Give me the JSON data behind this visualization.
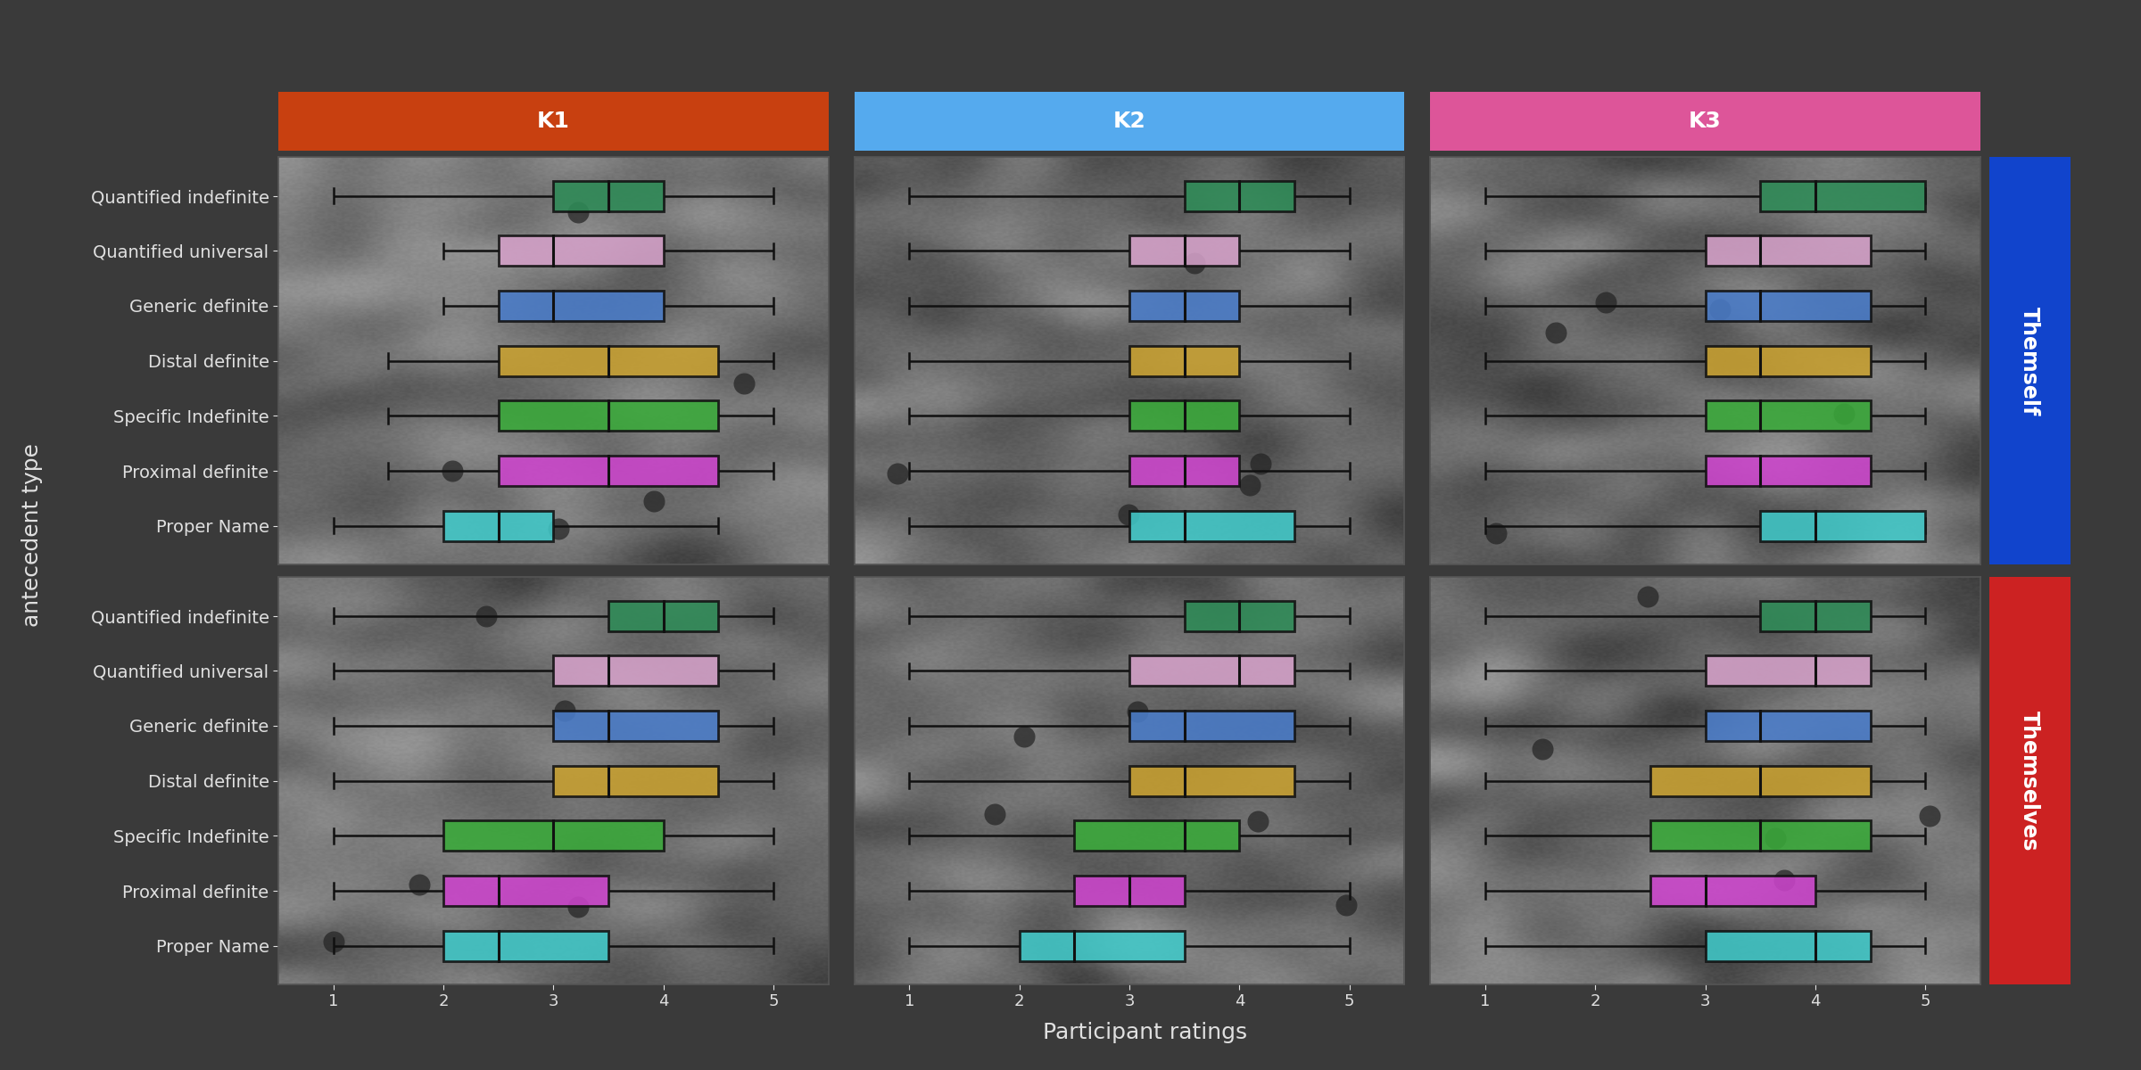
{
  "col_labels": [
    "K1",
    "K2",
    "K3"
  ],
  "col_colors": [
    "#c84010",
    "#55aaee",
    "#dd5599"
  ],
  "row_labels": [
    "Themself",
    "Themselves"
  ],
  "row_colors": [
    "#1144cc",
    "#cc2222"
  ],
  "categories": [
    "Quantified indefinite",
    "Quantified universal",
    "Generic definite",
    "Distal definite",
    "Specific Indefinite",
    "Proximal definite",
    "Proper Name"
  ],
  "box_colors": [
    "#2e8b57",
    "#d4a0c8",
    "#4a7cc9",
    "#c8a030",
    "#3aaa3a",
    "#cc44cc",
    "#40c8c8"
  ],
  "background_color": "#3a3a3a",
  "text_color": "#e0e0e0",
  "title_fontsize": 18,
  "label_fontsize": 14,
  "tick_fontsize": 13,
  "xlabel": "Participant ratings",
  "ylabel": "antecedent type",
  "xlim": [
    0.5,
    5.5
  ],
  "xticks": [
    1,
    2,
    3,
    4,
    5
  ],
  "data": {
    "Themself": {
      "K1": {
        "Quantified indefinite": [
          1.0,
          3.0,
          3.5,
          4.0,
          5.0
        ],
        "Quantified universal": [
          2.0,
          2.5,
          3.0,
          4.0,
          5.0
        ],
        "Generic definite": [
          2.0,
          2.5,
          3.0,
          4.0,
          5.0
        ],
        "Distal definite": [
          1.5,
          2.5,
          3.5,
          4.5,
          5.0
        ],
        "Specific Indefinite": [
          1.5,
          2.5,
          3.5,
          4.5,
          5.0
        ],
        "Proximal definite": [
          1.5,
          2.5,
          3.5,
          4.5,
          5.0
        ],
        "Proper Name": [
          1.0,
          2.0,
          2.5,
          3.0,
          4.5
        ]
      },
      "K2": {
        "Quantified indefinite": [
          1.0,
          3.5,
          4.0,
          4.5,
          5.0
        ],
        "Quantified universal": [
          1.0,
          3.0,
          3.5,
          4.0,
          5.0
        ],
        "Generic definite": [
          1.0,
          3.0,
          3.5,
          4.0,
          5.0
        ],
        "Distal definite": [
          1.0,
          3.0,
          3.5,
          4.0,
          5.0
        ],
        "Specific Indefinite": [
          1.0,
          3.0,
          3.5,
          4.0,
          5.0
        ],
        "Proximal definite": [
          1.0,
          3.0,
          3.5,
          4.0,
          5.0
        ],
        "Proper Name": [
          1.0,
          3.0,
          3.5,
          4.5,
          5.0
        ]
      },
      "K3": {
        "Quantified indefinite": [
          1.0,
          3.5,
          4.0,
          5.0,
          5.0
        ],
        "Quantified universal": [
          1.0,
          3.0,
          3.5,
          4.5,
          5.0
        ],
        "Generic definite": [
          1.0,
          3.0,
          3.5,
          4.5,
          5.0
        ],
        "Distal definite": [
          1.0,
          3.0,
          3.5,
          4.5,
          5.0
        ],
        "Specific Indefinite": [
          1.0,
          3.0,
          3.5,
          4.5,
          5.0
        ],
        "Proximal definite": [
          1.0,
          3.0,
          3.5,
          4.5,
          5.0
        ],
        "Proper Name": [
          1.0,
          3.5,
          4.0,
          5.0,
          5.0
        ]
      }
    },
    "Themselves": {
      "K1": {
        "Quantified indefinite": [
          1.0,
          3.5,
          4.0,
          4.5,
          5.0
        ],
        "Quantified universal": [
          1.0,
          3.0,
          3.5,
          4.5,
          5.0
        ],
        "Generic definite": [
          1.0,
          3.0,
          3.5,
          4.5,
          5.0
        ],
        "Distal definite": [
          1.0,
          3.0,
          3.5,
          4.5,
          5.0
        ],
        "Specific Indefinite": [
          1.0,
          2.0,
          3.0,
          4.0,
          5.0
        ],
        "Proximal definite": [
          1.0,
          2.0,
          2.5,
          3.5,
          5.0
        ],
        "Proper Name": [
          1.0,
          2.0,
          2.5,
          3.5,
          5.0
        ]
      },
      "K2": {
        "Quantified indefinite": [
          1.0,
          3.5,
          4.0,
          4.5,
          5.0
        ],
        "Quantified universal": [
          1.0,
          3.0,
          4.0,
          4.5,
          5.0
        ],
        "Generic definite": [
          1.0,
          3.0,
          3.5,
          4.5,
          5.0
        ],
        "Distal definite": [
          1.0,
          3.0,
          3.5,
          4.5,
          5.0
        ],
        "Specific Indefinite": [
          1.0,
          2.5,
          3.5,
          4.0,
          5.0
        ],
        "Proximal definite": [
          1.0,
          2.5,
          3.0,
          3.5,
          5.0
        ],
        "Proper Name": [
          1.0,
          2.0,
          2.5,
          3.5,
          5.0
        ]
      },
      "K3": {
        "Quantified indefinite": [
          1.0,
          3.5,
          4.0,
          4.5,
          5.0
        ],
        "Quantified universal": [
          1.0,
          3.0,
          4.0,
          4.5,
          5.0
        ],
        "Generic definite": [
          1.0,
          3.0,
          3.5,
          4.5,
          5.0
        ],
        "Distal definite": [
          1.0,
          2.5,
          3.5,
          4.5,
          5.0
        ],
        "Specific Indefinite": [
          1.0,
          2.5,
          3.5,
          4.5,
          5.0
        ],
        "Proximal definite": [
          1.0,
          2.5,
          3.0,
          4.0,
          5.0
        ],
        "Proper Name": [
          1.0,
          3.0,
          4.0,
          4.5,
          5.0
        ]
      }
    }
  }
}
